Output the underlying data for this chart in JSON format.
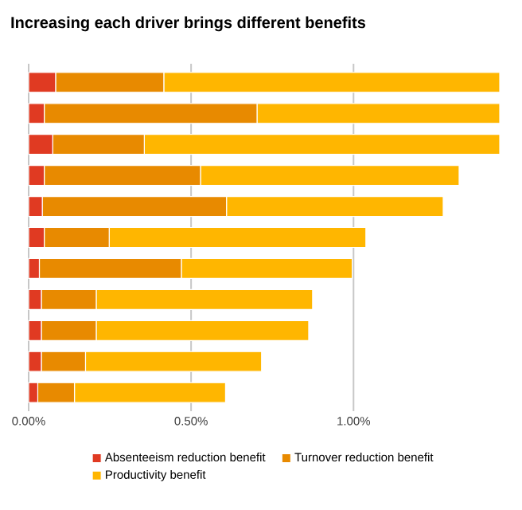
{
  "chart_data": {
    "type": "bar",
    "orientation": "horizontal",
    "stacked": true,
    "title": "Increasing each driver brings different benefits",
    "categories": [
      null,
      null,
      null,
      null,
      null,
      null,
      null,
      null,
      null,
      null,
      null
    ],
    "series": [
      {
        "name": "Absenteeism reduction benefit",
        "color": "#e03a22",
        "values": [
          0.083,
          0.048,
          0.074,
          0.048,
          0.042,
          0.048,
          0.033,
          0.039,
          0.039,
          0.039,
          0.028
        ]
      },
      {
        "name": "Turnover reduction benefit",
        "color": "#e88a00",
        "values": [
          0.333,
          0.655,
          0.282,
          0.481,
          0.567,
          0.2,
          0.437,
          0.169,
          0.169,
          0.136,
          0.113
        ]
      },
      {
        "name": "Productivity benefit",
        "color": "#ffb600",
        "values": [
          1.034,
          0.747,
          1.094,
          0.796,
          0.667,
          0.79,
          0.526,
          0.666,
          0.654,
          0.542,
          0.465
        ]
      }
    ],
    "xlim": [
      0,
      1.45
    ],
    "xticks": [
      {
        "value": 0,
        "label": "0.00%"
      },
      {
        "value": 0.5,
        "label": "0.50%"
      },
      {
        "value": 1.0,
        "label": "1.00%"
      }
    ],
    "grid": "x",
    "legend": "bottom"
  }
}
